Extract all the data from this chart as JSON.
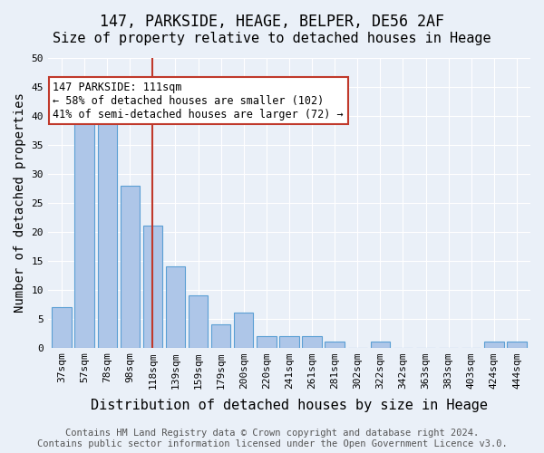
{
  "title": "147, PARKSIDE, HEAGE, BELPER, DE56 2AF",
  "subtitle": "Size of property relative to detached houses in Heage",
  "xlabel": "Distribution of detached houses by size in Heage",
  "ylabel": "Number of detached properties",
  "categories": [
    "37sqm",
    "57sqm",
    "78sqm",
    "98sqm",
    "118sqm",
    "139sqm",
    "159sqm",
    "179sqm",
    "200sqm",
    "220sqm",
    "241sqm",
    "261sqm",
    "281sqm",
    "302sqm",
    "322sqm",
    "342sqm",
    "363sqm",
    "383sqm",
    "403sqm",
    "424sqm",
    "444sqm"
  ],
  "values": [
    7,
    40,
    39,
    28,
    21,
    14,
    9,
    4,
    6,
    2,
    2,
    2,
    1,
    0,
    1,
    0,
    0,
    0,
    0,
    1,
    1
  ],
  "bar_color": "#aec6e8",
  "bar_edge_color": "#5a9fd4",
  "ylim": [
    0,
    50
  ],
  "yticks": [
    0,
    5,
    10,
    15,
    20,
    25,
    30,
    35,
    40,
    45,
    50
  ],
  "vline_x_index": 4,
  "vline_color": "#c0392b",
  "annotation_text": "147 PARKSIDE: 111sqm\n← 58% of detached houses are smaller (102)\n41% of semi-detached houses are larger (72) →",
  "annotation_box_color": "#ffffff",
  "annotation_box_edge_color": "#c0392b",
  "footer_text": "Contains HM Land Registry data © Crown copyright and database right 2024.\nContains public sector information licensed under the Open Government Licence v3.0.",
  "background_color": "#eaf0f8",
  "plot_bg_color": "#eaf0f8",
  "title_fontsize": 12,
  "subtitle_fontsize": 11,
  "axis_label_fontsize": 10,
  "tick_fontsize": 8,
  "footer_fontsize": 7.5
}
